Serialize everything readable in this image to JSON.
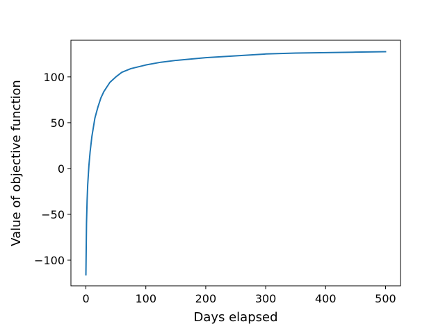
{
  "chart_data": {
    "type": "line",
    "title": "",
    "xlabel": "Days elapsed",
    "ylabel": "Value of objective function",
    "xlim": [
      -25,
      525
    ],
    "ylim": [
      -128,
      140
    ],
    "xticks": [
      0,
      100,
      200,
      300,
      400,
      500
    ],
    "yticks": [
      -100,
      -50,
      0,
      50,
      100
    ],
    "ytick_labels": [
      "−100",
      "−50",
      "0",
      "50",
      "100"
    ],
    "grid": false,
    "series": [
      {
        "color": "#1f77b4",
        "x": [
          0,
          1,
          2,
          3,
          5,
          7,
          10,
          15,
          20,
          25,
          30,
          40,
          50,
          60,
          75,
          100,
          125,
          150,
          200,
          250,
          300,
          350,
          400,
          450,
          500
        ],
        "y": [
          -116,
          -60,
          -35,
          -18,
          3,
          18,
          35,
          55,
          67,
          77,
          84,
          94,
          100,
          105,
          109,
          113,
          116,
          118,
          121,
          123,
          125,
          126,
          126.5,
          127,
          127.5
        ]
      }
    ]
  }
}
